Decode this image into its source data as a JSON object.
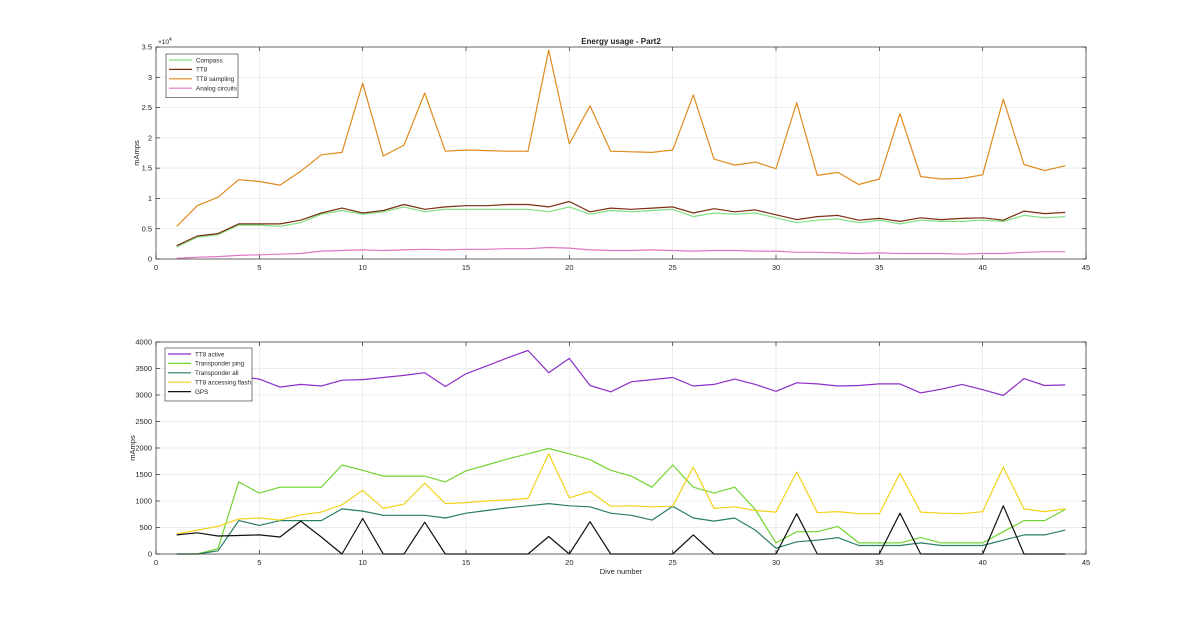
{
  "chart_data": [
    {
      "type": "line",
      "title": "Energy usage - Part2",
      "xlabel": "",
      "ylabel": "mAmps",
      "xlim": [
        0,
        45
      ],
      "ylim": [
        0,
        35000
      ],
      "y_exponent_label": "×10",
      "y_exponent_power": "4",
      "xticks": [
        0,
        5,
        10,
        15,
        20,
        25,
        30,
        35,
        40,
        45
      ],
      "xtick_labels": [
        "0",
        "5",
        "10",
        "15",
        "20",
        "25",
        "30",
        "35",
        "40",
        "45"
      ],
      "yticks": [
        0,
        5000,
        10000,
        15000,
        20000,
        25000,
        30000,
        35000
      ],
      "ytick_labels": [
        "0",
        "0.5",
        "1",
        "1.5",
        "2",
        "2.5",
        "3",
        "3.5"
      ],
      "grid": true,
      "legend_position": "top-left",
      "x": [
        1,
        2,
        3,
        4,
        5,
        6,
        7,
        8,
        9,
        10,
        11,
        12,
        13,
        14,
        15,
        16,
        17,
        18,
        19,
        20,
        21,
        22,
        23,
        24,
        25,
        26,
        27,
        28,
        29,
        30,
        31,
        32,
        33,
        34,
        35,
        36,
        37,
        38,
        39,
        40,
        41,
        42,
        43,
        44
      ],
      "series": [
        {
          "name": "Compass",
          "color": "#7fe07f",
          "values": [
            2000,
            3600,
            4000,
            5600,
            5600,
            5400,
            6000,
            7400,
            8000,
            7400,
            7800,
            8600,
            7800,
            8200,
            8200,
            8200,
            8200,
            8200,
            7800,
            8600,
            7400,
            8000,
            7800,
            8000,
            8200,
            7000,
            7600,
            7400,
            7600,
            6800,
            6000,
            6400,
            6600,
            6000,
            6400,
            5800,
            6400,
            6200,
            6200,
            6400,
            6200,
            7200,
            6800,
            7000
          ]
        },
        {
          "name": "TT8",
          "color": "#7b2e14",
          "values": [
            2200,
            3800,
            4200,
            5800,
            5800,
            5800,
            6400,
            7600,
            8400,
            7600,
            8000,
            9000,
            8200,
            8600,
            8800,
            8800,
            9000,
            9000,
            8600,
            9500,
            7800,
            8400,
            8200,
            8400,
            8600,
            7600,
            8300,
            7800,
            8100,
            7300,
            6500,
            7000,
            7200,
            6400,
            6700,
            6200,
            6800,
            6500,
            6700,
            6800,
            6400,
            7900,
            7500,
            7700
          ]
        },
        {
          "name": "TT8 sampling",
          "color": "#e08a1c",
          "values": [
            5400,
            8800,
            10200,
            13100,
            12800,
            12200,
            14500,
            17200,
            17600,
            29000,
            17000,
            18800,
            27400,
            17800,
            18000,
            17900,
            17800,
            17800,
            34500,
            19000,
            25300,
            17800,
            17700,
            17600,
            18000,
            27100,
            16500,
            15500,
            16000,
            14900,
            25800,
            13800,
            14300,
            12300,
            13200,
            24000,
            13600,
            13200,
            13300,
            13900,
            26400,
            15600,
            14600,
            15400
          ]
        },
        {
          "name": "Analog circuits",
          "color": "#e077c6",
          "values": [
            100,
            300,
            400,
            600,
            700,
            800,
            900,
            1300,
            1400,
            1500,
            1400,
            1500,
            1600,
            1500,
            1600,
            1600,
            1700,
            1700,
            1900,
            1800,
            1500,
            1400,
            1400,
            1500,
            1400,
            1300,
            1400,
            1400,
            1300,
            1300,
            1100,
            1100,
            1000,
            900,
            1000,
            900,
            900,
            900,
            800,
            900,
            900,
            1100,
            1200,
            1200
          ]
        }
      ]
    },
    {
      "type": "line",
      "title": "",
      "xlabel": "Dive number",
      "ylabel": "mAmps",
      "xlim": [
        0,
        45
      ],
      "ylim": [
        0,
        4000
      ],
      "xticks": [
        0,
        5,
        10,
        15,
        20,
        25,
        30,
        35,
        40,
        45
      ],
      "xtick_labels": [
        "0",
        "5",
        "10",
        "15",
        "20",
        "25",
        "30",
        "35",
        "40",
        "45"
      ],
      "yticks": [
        0,
        500,
        1000,
        1500,
        2000,
        2500,
        3000,
        3500,
        4000
      ],
      "ytick_labels": [
        "0",
        "500",
        "1000",
        "1500",
        "2000",
        "2500",
        "3000",
        "3500",
        "4000"
      ],
      "grid": true,
      "legend_position": "top-left",
      "x": [
        1,
        2,
        3,
        4,
        5,
        6,
        7,
        8,
        9,
        10,
        11,
        12,
        13,
        14,
        15,
        16,
        17,
        18,
        19,
        20,
        21,
        22,
        23,
        24,
        25,
        26,
        27,
        28,
        29,
        30,
        31,
        32,
        33,
        34,
        35,
        36,
        37,
        38,
        39,
        40,
        41,
        42,
        43,
        44
      ],
      "series": [
        {
          "name": "TT8 active",
          "color": "#8e2fc7",
          "values": [
            2950,
            3100,
            3300,
            3350,
            3300,
            3150,
            3200,
            3170,
            3280,
            3290,
            3330,
            3370,
            3420,
            3160,
            3400,
            3550,
            3700,
            3840,
            3420,
            3690,
            3180,
            3060,
            3250,
            3290,
            3330,
            3170,
            3200,
            3300,
            3200,
            3070,
            3230,
            3210,
            3170,
            3180,
            3210,
            3210,
            3040,
            3110,
            3200,
            3100,
            2990,
            3310,
            3180,
            3190
          ]
        },
        {
          "name": "Transponder ping",
          "color": "#72d432",
          "values": [
            0,
            0,
            100,
            1360,
            1150,
            1260,
            1260,
            1260,
            1680,
            1580,
            1470,
            1470,
            1470,
            1360,
            1570,
            1680,
            1790,
            1890,
            1990,
            1890,
            1780,
            1580,
            1470,
            1260,
            1680,
            1260,
            1150,
            1260,
            840,
            210,
            420,
            420,
            520,
            210,
            210,
            210,
            310,
            210,
            210,
            210,
            420,
            630,
            630,
            840
          ]
        },
        {
          "name": "Transponder all",
          "color": "#2a7d6a",
          "values": [
            0,
            0,
            60,
            630,
            540,
            630,
            630,
            630,
            850,
            810,
            730,
            730,
            730,
            680,
            770,
            820,
            870,
            910,
            950,
            910,
            890,
            770,
            730,
            640,
            900,
            680,
            620,
            680,
            450,
            110,
            230,
            260,
            310,
            160,
            160,
            160,
            210,
            160,
            160,
            160,
            260,
            360,
            360,
            450
          ]
        },
        {
          "name": "TT8 accessing flash",
          "color": "#f2d21c",
          "values": [
            380,
            450,
            520,
            660,
            680,
            640,
            740,
            790,
            930,
            1200,
            860,
            940,
            1340,
            950,
            970,
            1000,
            1020,
            1050,
            1890,
            1060,
            1180,
            900,
            910,
            890,
            900,
            1640,
            860,
            890,
            820,
            790,
            1550,
            780,
            800,
            760,
            760,
            1520,
            790,
            770,
            760,
            800,
            1640,
            850,
            800,
            850
          ]
        },
        {
          "name": "GPS",
          "color": "#111111",
          "values": [
            360,
            400,
            340,
            350,
            360,
            320,
            620,
            320,
            0,
            670,
            0,
            0,
            600,
            0,
            0,
            0,
            0,
            0,
            330,
            0,
            610,
            0,
            0,
            0,
            0,
            360,
            0,
            0,
            0,
            0,
            760,
            0,
            0,
            0,
            0,
            770,
            0,
            0,
            0,
            0,
            910,
            0,
            0,
            0
          ]
        }
      ]
    }
  ]
}
